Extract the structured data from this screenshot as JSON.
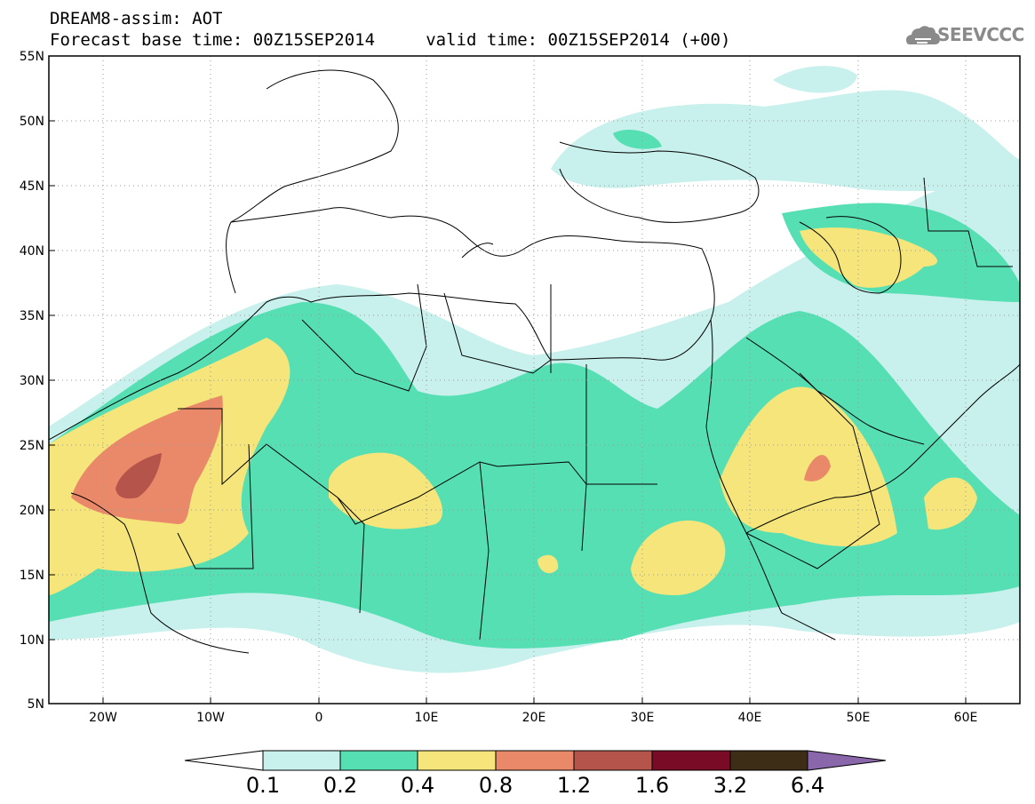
{
  "header": {
    "title_line1": "DREAM8-assim: AOT",
    "title_line2": "Forecast base time: 00Z15SEP2014     valid time: 00Z15SEP2014 (+00)",
    "logo_text": "SEEVCCC"
  },
  "map": {
    "lat_labels": [
      "55N",
      "50N",
      "45N",
      "40N",
      "35N",
      "30N",
      "25N",
      "20N",
      "15N",
      "10N",
      "5N"
    ],
    "lon_labels": [
      "20W",
      "10W",
      "0",
      "10E",
      "20E",
      "30E",
      "40E",
      "50E",
      "60E"
    ]
  },
  "colorbar": {
    "labels": [
      "0.1",
      "0.2",
      "0.4",
      "0.8",
      "1.2",
      "1.6",
      "3.2",
      "6.4"
    ],
    "colors": [
      "#ffffff",
      "#c8f0ec",
      "#57dfb4",
      "#f5e57a",
      "#e9896a",
      "#b5544a",
      "#7a0b26",
      "#3d2c16",
      "#8a66aa"
    ]
  }
}
